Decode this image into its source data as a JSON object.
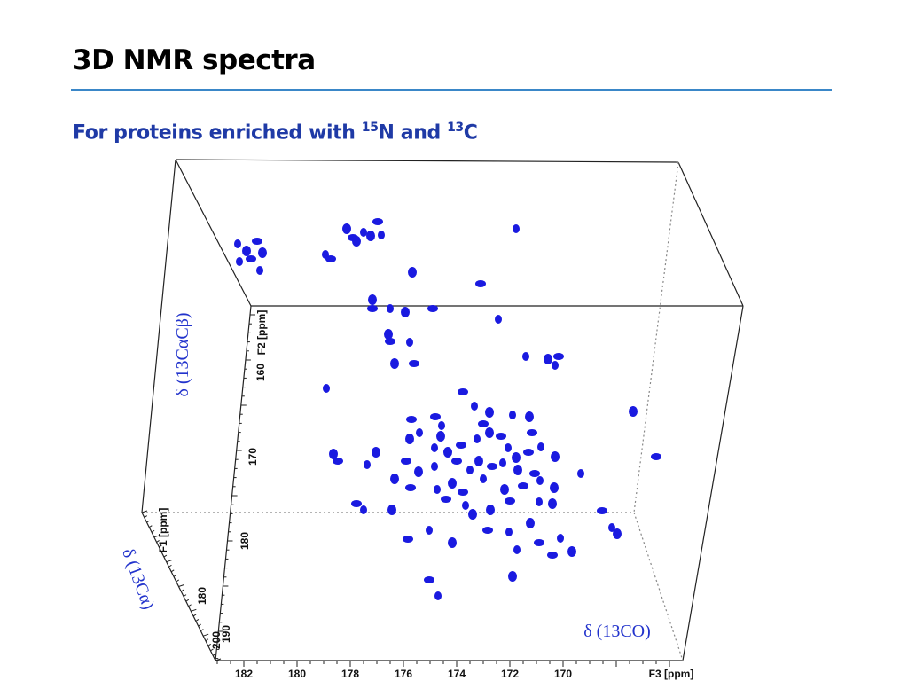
{
  "slide": {
    "title": "3D NMR spectra",
    "subtitle_prefix": "For proteins enriched with ",
    "isotope1_mass": "15",
    "isotope1_symbol": "N",
    "subtitle_and": " and ",
    "isotope2_mass": "13",
    "isotope2_symbol": "C"
  },
  "figure": {
    "axis_label_vertical": "δ (13CαCβ)",
    "axis_label_depth": "δ (13Cα)",
    "axis_label_horizontal": "δ (13CO)",
    "f3_ticks": [
      "182",
      "180",
      "178",
      "176",
      "174",
      "172",
      "170"
    ],
    "f3_label": "F3 [ppm]",
    "f2_ticks": [
      "160",
      "170",
      "180"
    ],
    "f2_label": "F2 [ppm]",
    "f1_ticks": [
      "180",
      "190",
      "200"
    ],
    "f1_label": "F1 [ppm]",
    "peak_color": "#1a1ae0"
  }
}
